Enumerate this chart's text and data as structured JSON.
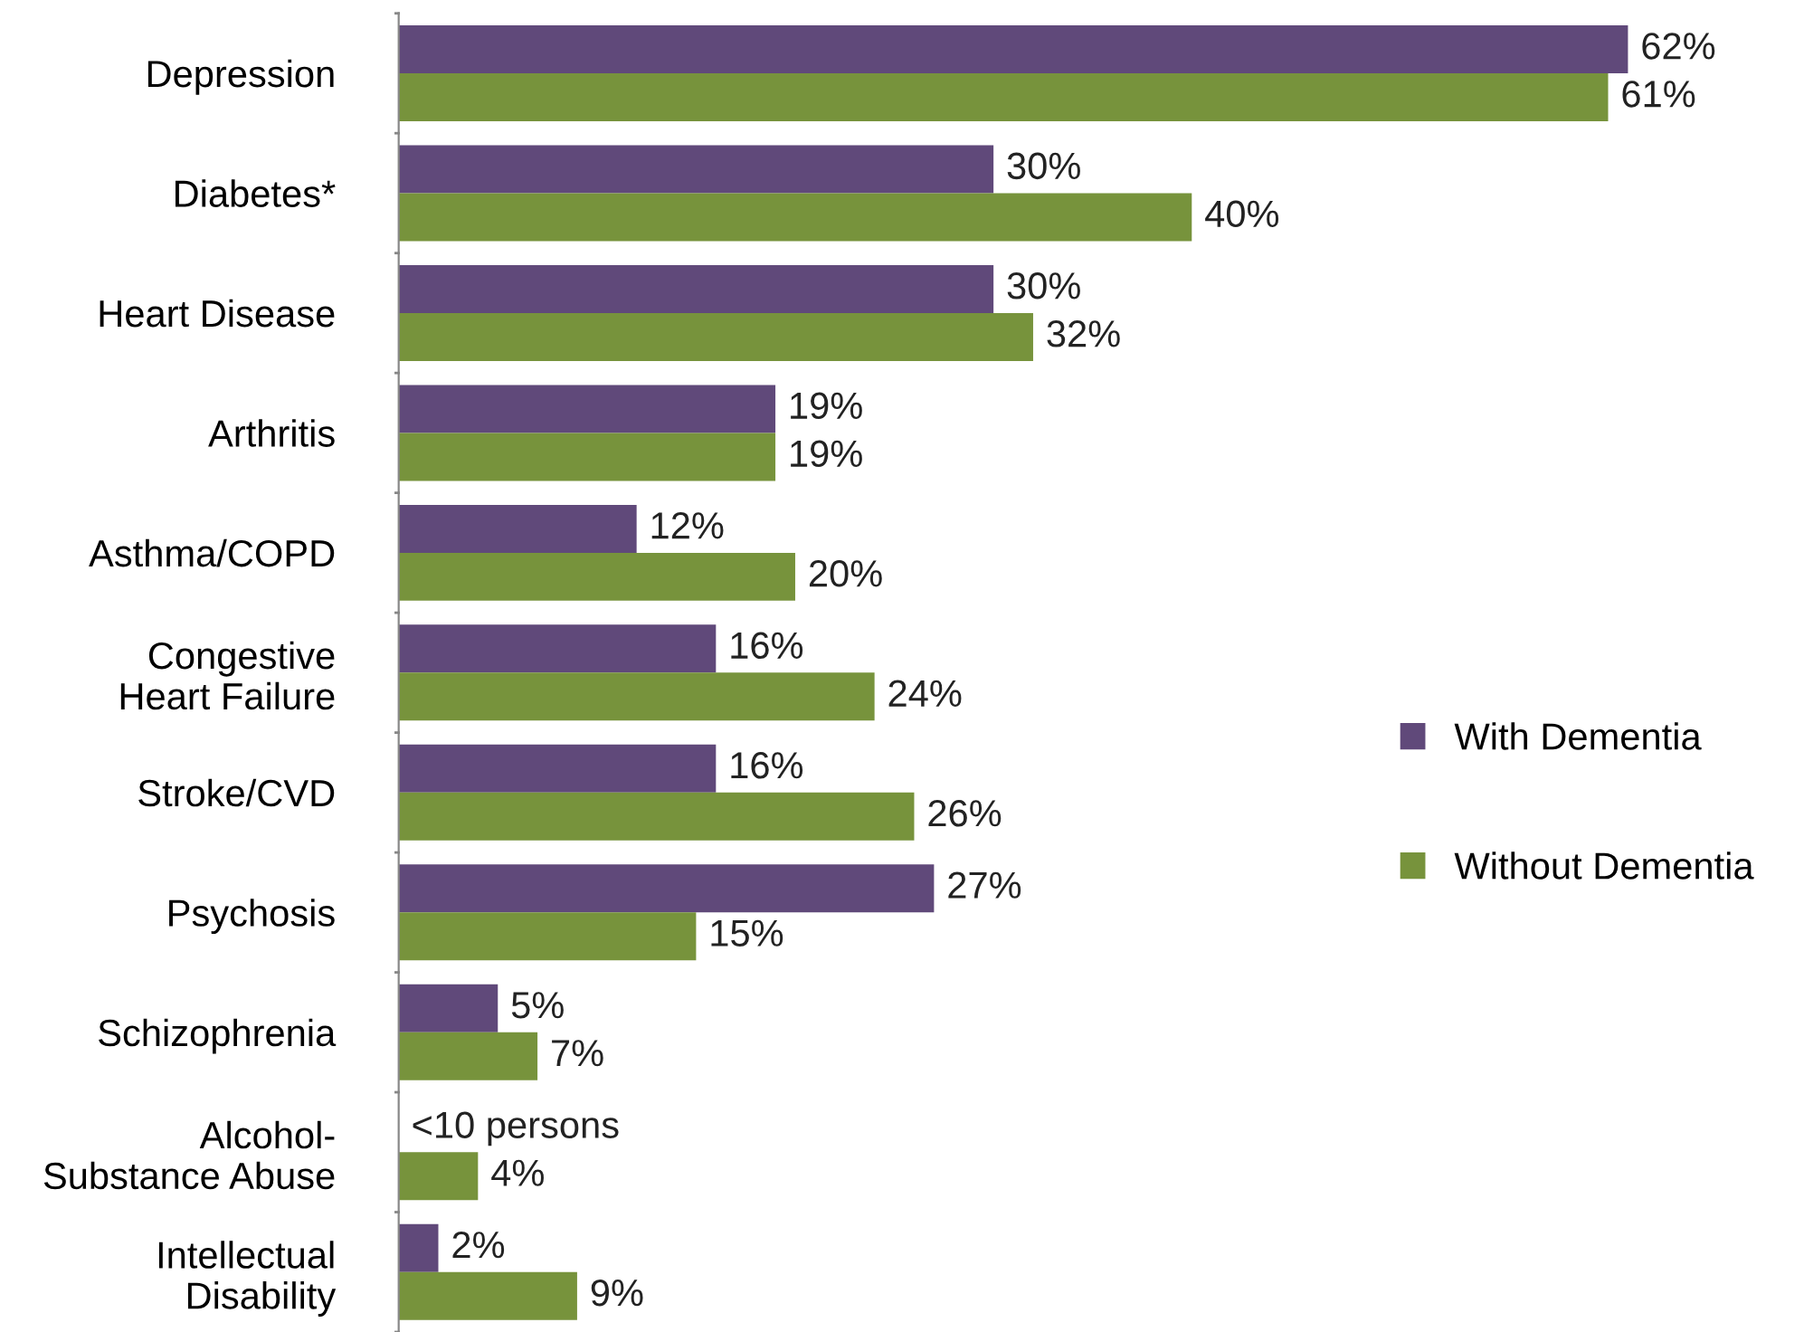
{
  "chart_data": {
    "type": "bar",
    "orientation": "horizontal",
    "categories": [
      "Depression",
      "Diabetes*",
      "Heart Disease",
      "Arthritis",
      "Asthma/COPD",
      "Congestive\nHeart Failure",
      "Stroke/CVD",
      "Psychosis",
      "Schizophrenia",
      "Alcohol-\nSubstance Abuse",
      "Intellectual\nDisability"
    ],
    "series": [
      {
        "name": "With Dementia",
        "color": "#60497a",
        "values": [
          62,
          30,
          30,
          19,
          12,
          16,
          16,
          27,
          5,
          null,
          2
        ],
        "value_labels": [
          "62%",
          "30%",
          "30%",
          "19%",
          "12%",
          "16%",
          "16%",
          "27%",
          "5%",
          "<10 persons",
          "2%"
        ]
      },
      {
        "name": "Without Dementia",
        "color": "#77933c",
        "values": [
          61,
          40,
          32,
          19,
          20,
          24,
          26,
          15,
          7,
          4,
          9
        ],
        "value_labels": [
          "61%",
          "40%",
          "32%",
          "19%",
          "20%",
          "24%",
          "26%",
          "15%",
          "7%",
          "4%",
          "9%"
        ]
      }
    ],
    "legend": "right",
    "grid": false
  }
}
